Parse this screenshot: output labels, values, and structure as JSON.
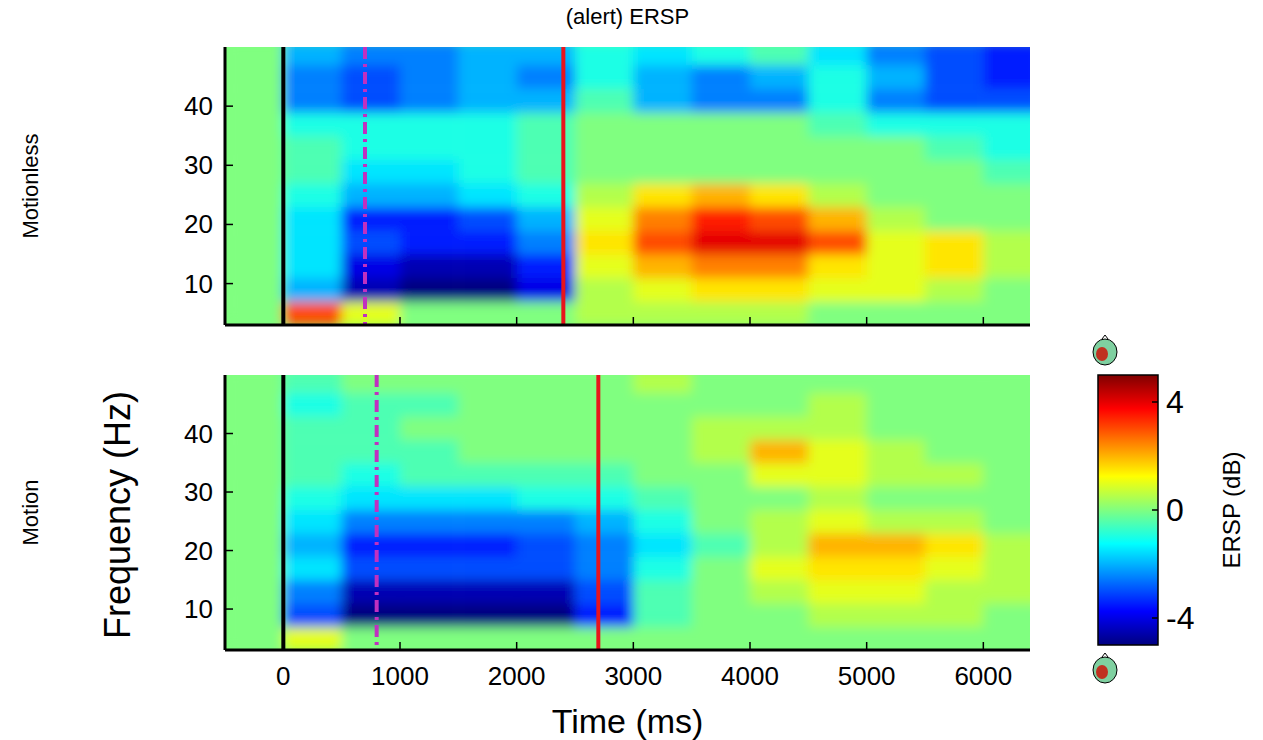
{
  "chart_data": {
    "type": "heatmap",
    "title": "(alert) ERSP",
    "x_label": "Time (ms)",
    "y_label": "Frequency (Hz)",
    "xlim": [
      -500,
      6400
    ],
    "xticks": [
      0,
      1000,
      2000,
      3000,
      4000,
      5000,
      6000
    ],
    "ylim": [
      3,
      50
    ],
    "yticks": [
      10,
      20,
      30,
      40
    ],
    "x_bins": [
      -500,
      0,
      500,
      1000,
      1500,
      2000,
      2500,
      3000,
      3500,
      4000,
      4500,
      5000,
      5500,
      6000,
      6500
    ],
    "y_bins": [
      3,
      7,
      11,
      15,
      19,
      23,
      27,
      31,
      35,
      39,
      43,
      47,
      51
    ],
    "colorbar": {
      "label": "ERSP (dB)",
      "range": [
        -5,
        5
      ],
      "ticks": [
        -4,
        0,
        4
      ]
    },
    "panels": [
      {
        "name": "Motionless",
        "cells": [
          [
            0,
            3,
            1,
            0,
            0,
            0,
            0.5,
            0.5,
            0.5,
            0.5,
            0,
            0,
            0,
            0
          ],
          [
            0,
            -2,
            -4.5,
            -5,
            -5,
            -4,
            0.5,
            1,
            1.5,
            1.5,
            1,
            1,
            0.5,
            0
          ],
          [
            0,
            -1.5,
            -4,
            -4.5,
            -4.5,
            -3.5,
            1,
            2,
            2.5,
            2.5,
            1.5,
            1,
            1.5,
            0.5
          ],
          [
            0,
            -1.5,
            -3,
            -3.5,
            -3.5,
            -2.5,
            1.5,
            3,
            4,
            4,
            3,
            1,
            1.5,
            0.5
          ],
          [
            0,
            -1.5,
            -3.5,
            -3.5,
            -3,
            -2,
            1,
            2.5,
            3.5,
            3,
            2,
            0.5,
            0,
            0
          ],
          [
            0,
            -1,
            -2,
            -2,
            -1.5,
            -1,
            0.5,
            1.5,
            2,
            1.5,
            0.5,
            0,
            0,
            0
          ],
          [
            0,
            -0.5,
            -1.5,
            -1.5,
            -1,
            -0.5,
            0,
            0,
            0,
            0,
            0,
            0,
            0,
            -0.5
          ],
          [
            0,
            -0.5,
            -1,
            -1,
            -1,
            -0.5,
            0,
            0,
            0,
            0,
            0,
            0,
            -0.5,
            -1
          ],
          [
            0,
            -1,
            -1,
            -1,
            -1,
            -0.5,
            0,
            0,
            0,
            0,
            -0.5,
            -1,
            -1,
            -1
          ],
          [
            0,
            -2.5,
            -3,
            -2.5,
            -2,
            -2,
            -0.5,
            -2,
            -2.5,
            -2.5,
            -1,
            -2.5,
            -3,
            -3
          ],
          [
            0,
            -2.5,
            -3,
            -2.5,
            -2,
            -2.5,
            -1,
            -2,
            -2.5,
            -2,
            -1,
            -2,
            -3,
            -3.5
          ],
          [
            0,
            -2,
            -2.5,
            -2.5,
            -2,
            -2,
            -1,
            -1.5,
            -1,
            -0.5,
            -1.5,
            -2.5,
            -3,
            -3.5
          ]
        ],
        "events": [
          {
            "time": 0,
            "color": "#000000",
            "line_style": "solid"
          },
          {
            "time": 700,
            "color": "#c030c0",
            "line_style": "dashdot"
          },
          {
            "time": 2400,
            "color": "#e8141c",
            "line_style": "solid"
          }
        ]
      },
      {
        "name": "Motion",
        "cells": [
          [
            0,
            1,
            0,
            0,
            0,
            0,
            0,
            0,
            0,
            0,
            0,
            0,
            0,
            0
          ],
          [
            0,
            -3,
            -5,
            -5,
            -5,
            -5,
            -3.5,
            -0.5,
            0,
            0,
            0.5,
            0.5,
            0.5,
            0
          ],
          [
            0,
            -2.5,
            -4.5,
            -4.5,
            -4.5,
            -4.5,
            -3,
            -0.5,
            0,
            0.5,
            1,
            1,
            0.5,
            0.5
          ],
          [
            0,
            -1.5,
            -3,
            -3,
            -3,
            -3,
            -2.5,
            -1,
            0,
            1,
            1.5,
            1.5,
            1,
            0.5
          ],
          [
            0,
            -2,
            -3.5,
            -3.5,
            -3.5,
            -3,
            -2.5,
            -1.5,
            -0.5,
            0.5,
            2,
            2,
            1.5,
            0.5
          ],
          [
            0,
            -1.5,
            -2.5,
            -2.5,
            -2.5,
            -2.5,
            -2,
            -1,
            0,
            0.5,
            1,
            0.5,
            0.5,
            0
          ],
          [
            0,
            -1,
            -1.5,
            -1.5,
            -1.5,
            -1,
            -1,
            -0.5,
            0,
            0,
            0.5,
            0,
            0,
            0
          ],
          [
            0,
            -0.5,
            -1,
            -0.5,
            -0.5,
            -0.5,
            -0.5,
            0,
            0,
            1,
            1,
            0.5,
            0.5,
            0
          ],
          [
            0,
            -0.5,
            -0.5,
            -0.5,
            0,
            0,
            0,
            0,
            0.5,
            2,
            1,
            0.5,
            0,
            0
          ],
          [
            0,
            -0.5,
            -0.5,
            0,
            0,
            0,
            0,
            0,
            0.5,
            0.5,
            0.5,
            0,
            0,
            0
          ],
          [
            0,
            -1,
            -0.5,
            -0.5,
            0,
            0,
            0,
            0,
            0,
            0,
            0.5,
            0,
            0,
            0
          ],
          [
            0,
            -0.5,
            0,
            0,
            0,
            0,
            0,
            0.5,
            0,
            0,
            0,
            0,
            0,
            0
          ]
        ],
        "events": [
          {
            "time": 0,
            "color": "#000000",
            "line_style": "solid"
          },
          {
            "time": 800,
            "color": "#c030c0",
            "line_style": "dashdot"
          },
          {
            "time": 2700,
            "color": "#e8141c",
            "line_style": "solid"
          }
        ]
      }
    ]
  }
}
